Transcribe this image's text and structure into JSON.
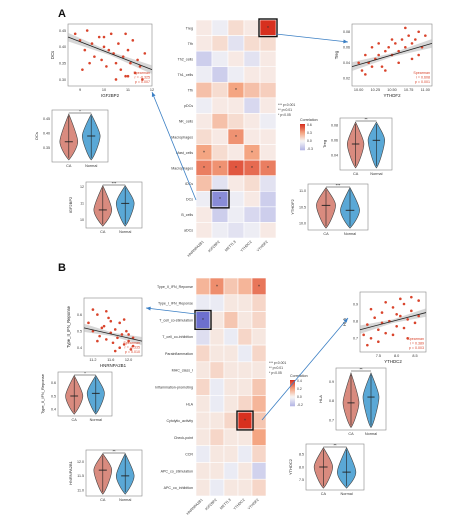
{
  "panels": [
    {
      "letter": "A"
    },
    {
      "letter": "B"
    }
  ],
  "colors": {
    "pos_high": "#d7301f",
    "pos_mid": "#f4a582",
    "neutral": "#f7f7f7",
    "neg_mid": "#b8b9e6",
    "neg_high": "#5a5ec8",
    "ca_fill": "#d98b7f",
    "normal_fill": "#5aa8d6",
    "scatter_dot": "#d9442c",
    "box_highlight": "#111111",
    "arrow": "#3b7fc4"
  },
  "chart_data": [
    {
      "type": "heatmap",
      "panel": "A",
      "rows": [
        "Treg",
        "Tfh",
        "Th2_cells",
        "Th1_cells",
        "Tfh",
        "pDCs",
        "NK_cells",
        "Macrophages",
        "Mast_cells",
        "Macrophages",
        "iDCs",
        "DCs",
        "B_cells",
        "aDCs"
      ],
      "columns": [
        "HNRNPA2B1",
        "IGF2BP2",
        "METTL3",
        "YTHDC2",
        "YTHDF2"
      ],
      "values": [
        [
          0.05,
          -0.05,
          0.1,
          0.05,
          0.6
        ],
        [
          0.05,
          0.1,
          -0.1,
          0.1,
          0.1
        ],
        [
          -0.2,
          -0.05,
          0.05,
          -0.1,
          0.05
        ],
        [
          -0.05,
          -0.2,
          -0.05,
          0.05,
          0.05
        ],
        [
          0.2,
          0.1,
          0.3,
          0.2,
          0.15
        ],
        [
          -0.05,
          0.05,
          0.05,
          -0.15,
          0.05
        ],
        [
          0.05,
          0.2,
          0.1,
          0.05,
          -0.05
        ],
        [
          0.1,
          0.05,
          0.35,
          0.05,
          0.05
        ],
        [
          0.3,
          0.1,
          0.05,
          0.3,
          0.05
        ],
        [
          0.4,
          0.35,
          0.5,
          0.45,
          0.4
        ],
        [
          0.2,
          -0.1,
          0.05,
          0.1,
          -0.1
        ],
        [
          -0.05,
          -0.45,
          -0.05,
          0.05,
          -0.2
        ],
        [
          0.05,
          -0.2,
          -0.05,
          -0.15,
          -0.2
        ],
        [
          0.05,
          -0.05,
          -0.1,
          -0.05,
          0.05
        ]
      ],
      "legend_title": "Correlation",
      "legend_ticks": [
        "0.6",
        "0.3",
        "0.0",
        "-0.3"
      ],
      "significance_legend": [
        "*** p<0.001",
        "** p<0.01",
        "* p<0.05"
      ]
    },
    {
      "type": "scatter",
      "panel": "A",
      "xlabel": "IGF2BP2",
      "ylabel": "DCs",
      "x_ticks": [
        "9",
        "10",
        "11",
        "12"
      ],
      "y_ticks": [
        "0.45",
        "0.40",
        "0.35",
        "0.30"
      ],
      "xlim": [
        8.5,
        12
      ],
      "ylim": [
        0.28,
        0.47
      ],
      "trend": [
        [
          8.5,
          0.43
        ],
        [
          12,
          0.33
        ]
      ],
      "annotation": [
        "Spearman",
        "r = -0.325",
        "p = 0.007"
      ],
      "points": [
        [
          8.8,
          0.44
        ],
        [
          9.0,
          0.42
        ],
        [
          9.2,
          0.39
        ],
        [
          9.3,
          0.45
        ],
        [
          9.5,
          0.41
        ],
        [
          9.6,
          0.37
        ],
        [
          9.8,
          0.43
        ],
        [
          9.9,
          0.36
        ],
        [
          10.0,
          0.4
        ],
        [
          10.1,
          0.34
        ],
        [
          10.2,
          0.39
        ],
        [
          10.3,
          0.44
        ],
        [
          10.4,
          0.38
        ],
        [
          10.5,
          0.35
        ],
        [
          10.6,
          0.41
        ],
        [
          10.7,
          0.33
        ],
        [
          10.8,
          0.37
        ],
        [
          10.9,
          0.31
        ],
        [
          11.0,
          0.39
        ],
        [
          11.1,
          0.35
        ],
        [
          11.2,
          0.42
        ],
        [
          11.3,
          0.32
        ],
        [
          11.4,
          0.36
        ],
        [
          11.5,
          0.34
        ],
        [
          11.6,
          0.3
        ],
        [
          9.4,
          0.35
        ],
        [
          10.0,
          0.43
        ],
        [
          10.9,
          0.44
        ],
        [
          11.7,
          0.38
        ],
        [
          9.1,
          0.33
        ],
        [
          10.5,
          0.3
        ],
        [
          11.0,
          0.31
        ]
      ]
    },
    {
      "type": "scatter",
      "panel": "A",
      "xlabel": "YTHDF2",
      "ylabel": "Treg",
      "x_ticks": [
        "10.00",
        "10.25",
        "10.50",
        "10.75",
        "11.00"
      ],
      "y_ticks": [
        "0.08",
        "0.06",
        "0.04",
        "0.02"
      ],
      "xlim": [
        9.9,
        11.1
      ],
      "ylim": [
        0.01,
        0.09
      ],
      "trend": [
        [
          9.9,
          0.035
        ],
        [
          11.1,
          0.065
        ]
      ],
      "annotation": [
        "Spearman",
        "r = 0.608",
        "p = 0.001"
      ],
      "points": [
        [
          10.0,
          0.04
        ],
        [
          10.05,
          0.03
        ],
        [
          10.1,
          0.05
        ],
        [
          10.15,
          0.04
        ],
        [
          10.2,
          0.06
        ],
        [
          10.25,
          0.045
        ],
        [
          10.3,
          0.05
        ],
        [
          10.35,
          0.035
        ],
        [
          10.4,
          0.055
        ],
        [
          10.45,
          0.06
        ],
        [
          10.5,
          0.05
        ],
        [
          10.55,
          0.065
        ],
        [
          10.6,
          0.055
        ],
        [
          10.65,
          0.07
        ],
        [
          10.7,
          0.06
        ],
        [
          10.75,
          0.075
        ],
        [
          10.8,
          0.065
        ],
        [
          10.85,
          0.07
        ],
        [
          10.9,
          0.08
        ],
        [
          10.95,
          0.06
        ],
        [
          11.0,
          0.075
        ],
        [
          10.4,
          0.03
        ],
        [
          10.6,
          0.04
        ],
        [
          10.3,
          0.065
        ],
        [
          10.8,
          0.045
        ],
        [
          10.1,
          0.025
        ],
        [
          10.7,
          0.085
        ],
        [
          10.5,
          0.07
        ],
        [
          10.9,
          0.05
        ],
        [
          10.2,
          0.035
        ]
      ]
    },
    {
      "type": "violin",
      "panel": "A",
      "ylabel": "DCs",
      "categories": [
        "CA",
        "Normal"
      ],
      "significance": "*",
      "y_ticks": [
        "0.45",
        "0.40",
        "0.35"
      ],
      "medians": [
        0.37,
        0.39
      ],
      "ylim": [
        0.3,
        0.48
      ]
    },
    {
      "type": "violin",
      "panel": "A",
      "ylabel": "Treg",
      "categories": [
        "CA",
        "Normal"
      ],
      "significance": "**",
      "y_ticks": [
        "0.08",
        "0.06",
        "0.04"
      ],
      "medians": [
        0.055,
        0.06
      ],
      "ylim": [
        0.02,
        0.09
      ]
    },
    {
      "type": "violin",
      "panel": "A",
      "ylabel": "IGF2BP2",
      "categories": [
        "CA",
        "Normal"
      ],
      "significance": "***",
      "y_ticks": [
        "12",
        "11",
        "10"
      ],
      "medians": [
        10.6,
        11.0
      ],
      "ylim": [
        9.5,
        12.3
      ]
    },
    {
      "type": "violin",
      "panel": "A",
      "ylabel": "YTHDF2",
      "categories": [
        "CA",
        "Normal"
      ],
      "significance": "***",
      "y_ticks": [
        "11.0",
        "10.5",
        "10.0"
      ],
      "medians": [
        10.55,
        10.4
      ],
      "ylim": [
        9.8,
        11.2
      ]
    },
    {
      "type": "heatmap",
      "panel": "B",
      "rows": [
        "Type_II_IFN_Reponse",
        "Type_I_IFN_Reponse",
        "T_cell_co-stimulation",
        "T_cell_co-inhibition",
        "Parainflammation",
        "MHC_class_I",
        "Inflammation-promoting",
        "HLA",
        "Cytolytic_activity",
        "Check-point",
        "CCR",
        "APC_co_stimulation",
        "APC_co_inhibition"
      ],
      "columns": [
        "HNRNPA2B1",
        "IGF2BP2",
        "METTL3",
        "YTHDC2",
        "YTHDF2"
      ],
      "values": [
        [
          0.2,
          0.3,
          0.15,
          0.2,
          0.35
        ],
        [
          -0.05,
          -0.05,
          0.05,
          0.05,
          0.1
        ],
        [
          -0.45,
          0.05,
          0.15,
          0.05,
          0.1
        ],
        [
          -0.1,
          0.05,
          -0.05,
          0.1,
          0.05
        ],
        [
          0.1,
          0.05,
          0.05,
          -0.05,
          0.1
        ],
        [
          0.05,
          0.1,
          0.05,
          0.05,
          0.05
        ],
        [
          0.1,
          -0.05,
          0.05,
          0.05,
          0.15
        ],
        [
          0.05,
          -0.05,
          0.05,
          0.1,
          0.2
        ],
        [
          0.05,
          0.05,
          0.1,
          0.5,
          0.15
        ],
        [
          0.05,
          0.1,
          0.05,
          0.05,
          0.25
        ],
        [
          -0.05,
          0.05,
          0.05,
          -0.05,
          0.1
        ],
        [
          0.05,
          0.05,
          -0.05,
          0.05,
          -0.15
        ],
        [
          0.05,
          -0.05,
          0.05,
          0.05,
          0.1
        ]
      ],
      "legend_title": "Correlation",
      "legend_ticks": [
        "0.4",
        "0.2",
        "0.0",
        "-0.2"
      ],
      "significance_legend": [
        "*** p<0.001",
        "** p<0.01",
        "* p<0.05"
      ]
    },
    {
      "type": "scatter",
      "panel": "B",
      "xlabel": "HNRNPA2B1",
      "ylabel": "Type_II_IFN_Reponse",
      "x_ticks": [
        "11.2",
        "11.6",
        "12.0"
      ],
      "y_ticks": [
        "0.6",
        "0.5",
        "0.4"
      ],
      "xlim": [
        11.0,
        12.3
      ],
      "ylim": [
        0.35,
        0.7
      ],
      "trend": [
        [
          11.0,
          0.52
        ],
        [
          12.3,
          0.44
        ]
      ],
      "annotation": [
        "Spearman",
        "r = -0.335",
        "p = 0.010"
      ],
      "points": [
        [
          11.1,
          0.55
        ],
        [
          11.2,
          0.5
        ],
        [
          11.3,
          0.6
        ],
        [
          11.35,
          0.47
        ],
        [
          11.4,
          0.52
        ],
        [
          11.5,
          0.45
        ],
        [
          11.55,
          0.58
        ],
        [
          11.6,
          0.49
        ],
        [
          11.65,
          0.43
        ],
        [
          11.7,
          0.51
        ],
        [
          11.75,
          0.46
        ],
        [
          11.8,
          0.4
        ],
        [
          11.85,
          0.48
        ],
        [
          11.9,
          0.42
        ],
        [
          11.95,
          0.5
        ],
        [
          12.0,
          0.44
        ],
        [
          12.05,
          0.39
        ],
        [
          12.1,
          0.46
        ],
        [
          11.3,
          0.44
        ],
        [
          11.5,
          0.62
        ],
        [
          11.8,
          0.55
        ],
        [
          12.1,
          0.41
        ],
        [
          11.45,
          0.53
        ],
        [
          11.7,
          0.38
        ],
        [
          11.9,
          0.57
        ],
        [
          11.2,
          0.63
        ],
        [
          12.0,
          0.48
        ],
        [
          11.6,
          0.56
        ]
      ]
    },
    {
      "type": "scatter",
      "panel": "B",
      "xlabel": "YTHDC2",
      "ylabel": "HLA",
      "x_ticks": [
        "7.5",
        "8.0",
        "8.5"
      ],
      "y_ticks": [
        "0.9",
        "0.8",
        "0.7"
      ],
      "xlim": [
        7.0,
        8.8
      ],
      "ylim": [
        0.62,
        0.97
      ],
      "trend": [
        [
          7.0,
          0.75
        ],
        [
          8.8,
          0.85
        ]
      ],
      "annotation": [
        "Spearman",
        "r = 0.389",
        "p = 0.003"
      ],
      "points": [
        [
          7.1,
          0.72
        ],
        [
          7.2,
          0.78
        ],
        [
          7.3,
          0.7
        ],
        [
          7.4,
          0.82
        ],
        [
          7.5,
          0.75
        ],
        [
          7.6,
          0.85
        ],
        [
          7.7,
          0.73
        ],
        [
          7.8,
          0.8
        ],
        [
          7.9,
          0.88
        ],
        [
          8.0,
          0.77
        ],
        [
          8.1,
          0.83
        ],
        [
          8.2,
          0.9
        ],
        [
          8.3,
          0.81
        ],
        [
          8.4,
          0.86
        ],
        [
          8.5,
          0.79
        ],
        [
          8.6,
          0.92
        ],
        [
          7.5,
          0.68
        ],
        [
          7.9,
          0.72
        ],
        [
          8.2,
          0.76
        ],
        [
          8.4,
          0.94
        ],
        [
          7.3,
          0.87
        ],
        [
          7.7,
          0.91
        ],
        [
          8.0,
          0.84
        ],
        [
          8.6,
          0.83
        ],
        [
          7.6,
          0.79
        ],
        [
          8.3,
          0.7
        ],
        [
          7.2,
          0.66
        ],
        [
          8.1,
          0.93
        ]
      ]
    },
    {
      "type": "violin",
      "panel": "B",
      "ylabel": "Type_II_IFN_Reponse",
      "categories": [
        "CA",
        "Normal"
      ],
      "significance": "*",
      "y_ticks": [
        "0.6",
        "0.5",
        "0.4"
      ],
      "medians": [
        0.5,
        0.52
      ],
      "ylim": [
        0.35,
        0.68
      ]
    },
    {
      "type": "violin",
      "panel": "B",
      "ylabel": "HLA",
      "categories": [
        "CA",
        "Normal"
      ],
      "significance": "**",
      "y_ticks": [
        "0.9",
        "0.8",
        "0.7"
      ],
      "medians": [
        0.79,
        0.82
      ],
      "ylim": [
        0.65,
        0.97
      ]
    },
    {
      "type": "violin",
      "panel": "B",
      "ylabel": "HNRNPA2B1",
      "categories": [
        "CA",
        "Normal"
      ],
      "significance": "**",
      "y_ticks": [
        "12.0",
        "11.5",
        "11.0"
      ],
      "medians": [
        11.7,
        11.5
      ],
      "ylim": [
        10.8,
        12.4
      ]
    },
    {
      "type": "violin",
      "panel": "B",
      "ylabel": "YTHDC2",
      "categories": [
        "CA",
        "Normal"
      ],
      "significance": "**",
      "y_ticks": [
        "8.5",
        "8.0",
        "7.5"
      ],
      "medians": [
        8.0,
        7.8
      ],
      "ylim": [
        7.1,
        8.9
      ]
    }
  ]
}
